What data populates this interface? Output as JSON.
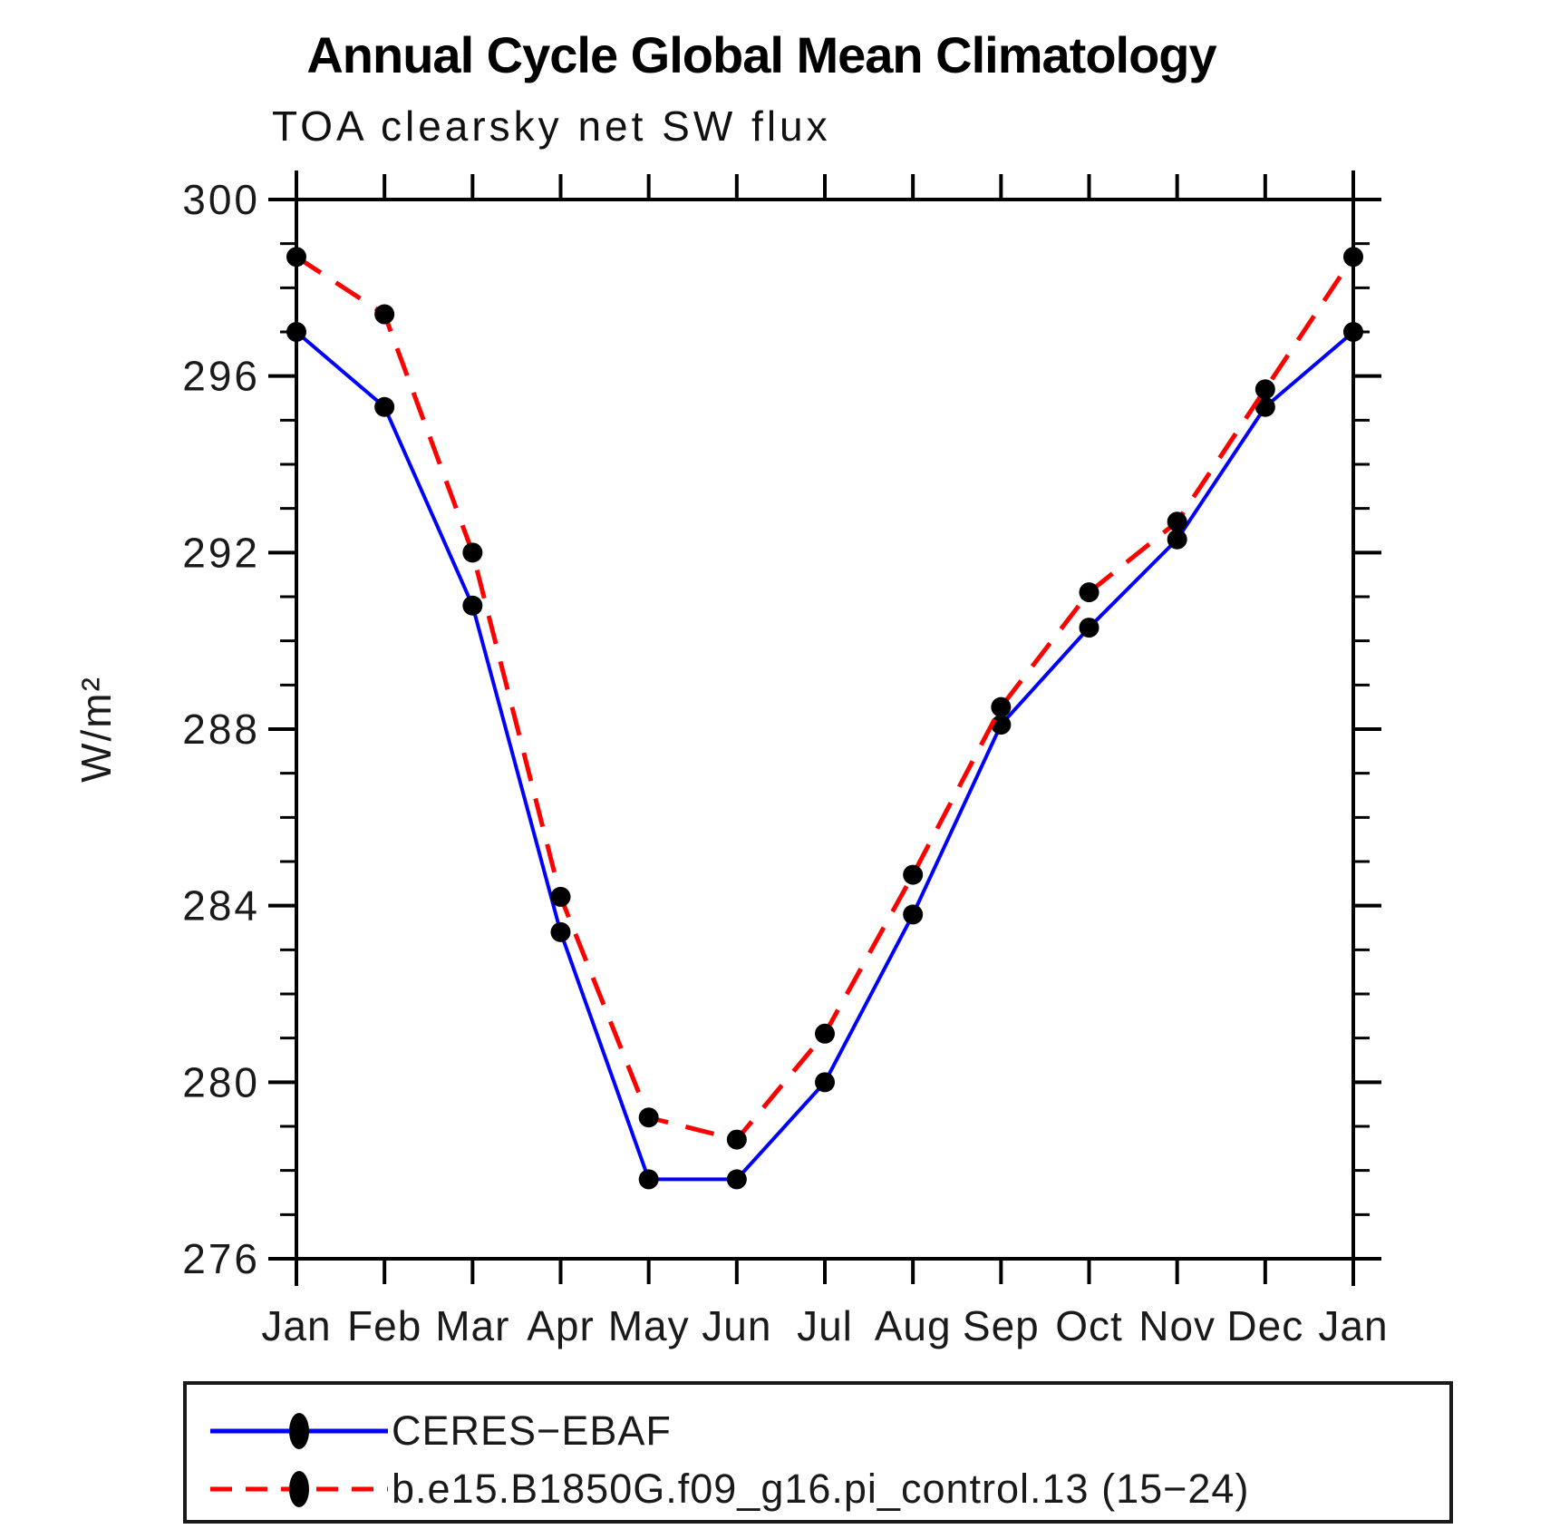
{
  "header": {
    "title": "Annual Cycle Global Mean Climatology",
    "subtitle": "TOA clearsky net SW flux"
  },
  "chart_data": {
    "type": "line",
    "title": "Annual Cycle Global Mean Climatology",
    "subtitle": "TOA clearsky net SW flux",
    "xlabel": "",
    "ylabel": "W/m²",
    "ylim": [
      276,
      300
    ],
    "ytick_major": [
      276,
      280,
      284,
      288,
      292,
      296,
      300
    ],
    "ytick_minor_step": 1,
    "grid": false,
    "legend_position": "bottom-left-box",
    "categories": [
      "Jan",
      "Feb",
      "Mar",
      "Apr",
      "May",
      "Jun",
      "Jul",
      "Aug",
      "Sep",
      "Oct",
      "Nov",
      "Dec",
      "Jan"
    ],
    "series": [
      {
        "name": "CERES−EBAF",
        "color": "#0000ff",
        "style": "solid",
        "marker": "filled-circle",
        "marker_color": "#000000",
        "values": [
          297.0,
          295.3,
          290.8,
          283.4,
          277.8,
          277.8,
          280.0,
          283.8,
          288.1,
          290.3,
          292.3,
          295.3,
          297.0
        ]
      },
      {
        "name": "b.e15.B1850G.f09_g16.pi_control.13 (15−24)",
        "color": "#ff0000",
        "style": "dashed",
        "marker": "filled-circle",
        "marker_color": "#000000",
        "values": [
          298.7,
          297.4,
          292.0,
          284.2,
          279.2,
          278.7,
          281.1,
          284.7,
          288.5,
          291.1,
          292.7,
          295.7,
          298.7
        ]
      }
    ]
  },
  "legend": {
    "items": [
      {
        "label": "CERES−EBAF",
        "color": "#0000ff",
        "style": "solid"
      },
      {
        "label": "b.e15.B1850G.f09_g16.pi_control.13 (15−24)",
        "color": "#ff0000",
        "style": "dashed"
      }
    ]
  }
}
